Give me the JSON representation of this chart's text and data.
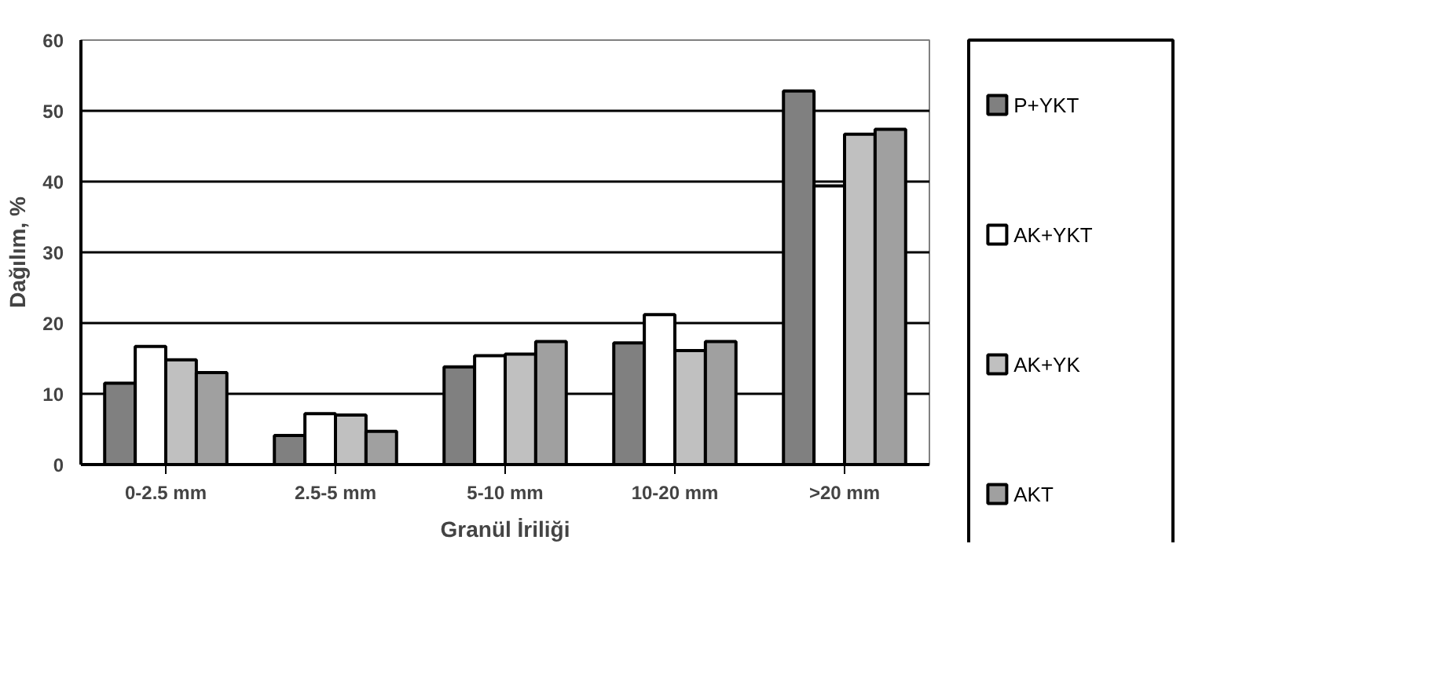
{
  "chart_data": {
    "type": "bar",
    "xlabel": "Granül İriliği",
    "ylabel": "Dağılım, %",
    "categories": [
      "0-2.5 mm",
      "2.5-5 mm",
      "5-10 mm",
      "10-20 mm",
      ">20 mm"
    ],
    "series": [
      {
        "name": "P+YKT",
        "color": "#808080",
        "values": [
          11.5,
          4.1,
          13.8,
          17.2,
          52.8
        ]
      },
      {
        "name": "AK+YKT",
        "color": "#ffffff",
        "values": [
          16.7,
          7.2,
          15.4,
          21.2,
          39.4
        ]
      },
      {
        "name": "AK+YK",
        "color": "#c0c0c0",
        "values": [
          14.8,
          7.0,
          15.6,
          16.1,
          46.7
        ]
      },
      {
        "name": "AKT",
        "color": "#a0a0a0",
        "values": [
          13.0,
          4.7,
          17.4,
          17.4,
          47.4
        ]
      }
    ],
    "ylim": [
      0,
      60
    ],
    "yticks": [
      0,
      10,
      20,
      30,
      40,
      50,
      60
    ],
    "grid": "y",
    "legend": "right"
  }
}
